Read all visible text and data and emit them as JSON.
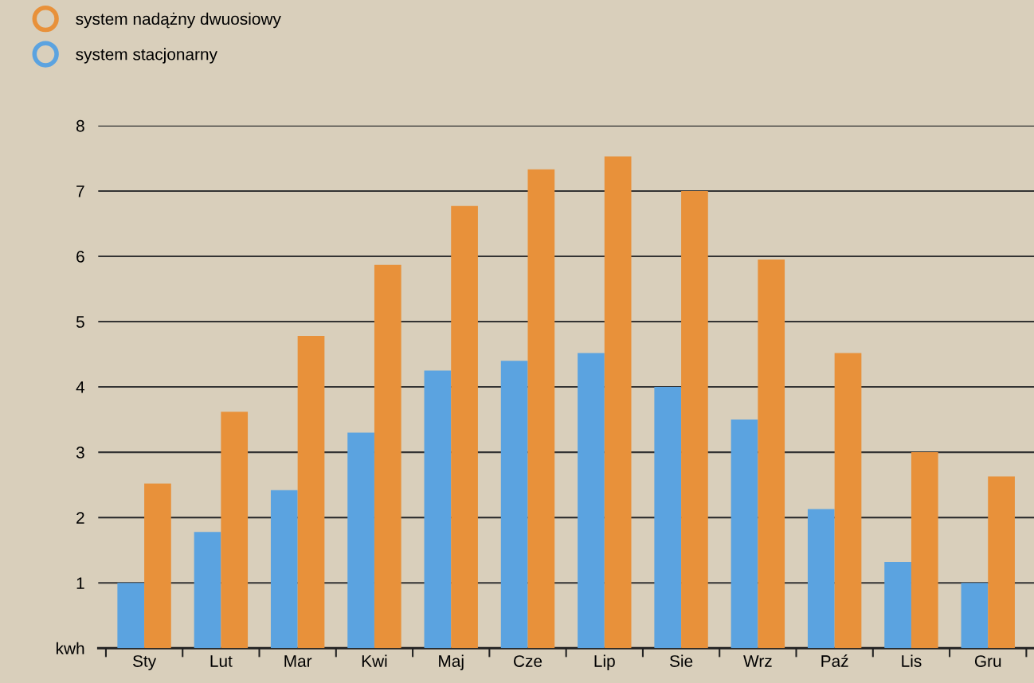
{
  "chart_data": {
    "type": "bar",
    "categories": [
      "Sty",
      "Lut",
      "Mar",
      "Kwi",
      "Maj",
      "Cze",
      "Lip",
      "Sie",
      "Wrz",
      "Paź",
      "Lis",
      "Gru"
    ],
    "series": [
      {
        "name": "system stacjonarny",
        "color": "#5ba3e0",
        "values": [
          1.0,
          1.78,
          2.42,
          3.3,
          4.25,
          4.4,
          4.52,
          4.0,
          3.5,
          2.13,
          1.32,
          1.0
        ]
      },
      {
        "name": "system nadążny dwuosiowy",
        "color": "#e8913a",
        "values": [
          2.52,
          3.62,
          4.78,
          5.87,
          6.77,
          7.33,
          7.53,
          7.0,
          5.95,
          4.52,
          3.0,
          2.63
        ]
      }
    ],
    "ylim": [
      0,
      8
    ],
    "yticks": [
      {
        "value": 0,
        "label": "kwh"
      },
      1,
      2,
      3,
      4,
      5,
      6,
      7,
      8
    ],
    "grid": "y",
    "legend": "top left",
    "marker": "circle"
  }
}
